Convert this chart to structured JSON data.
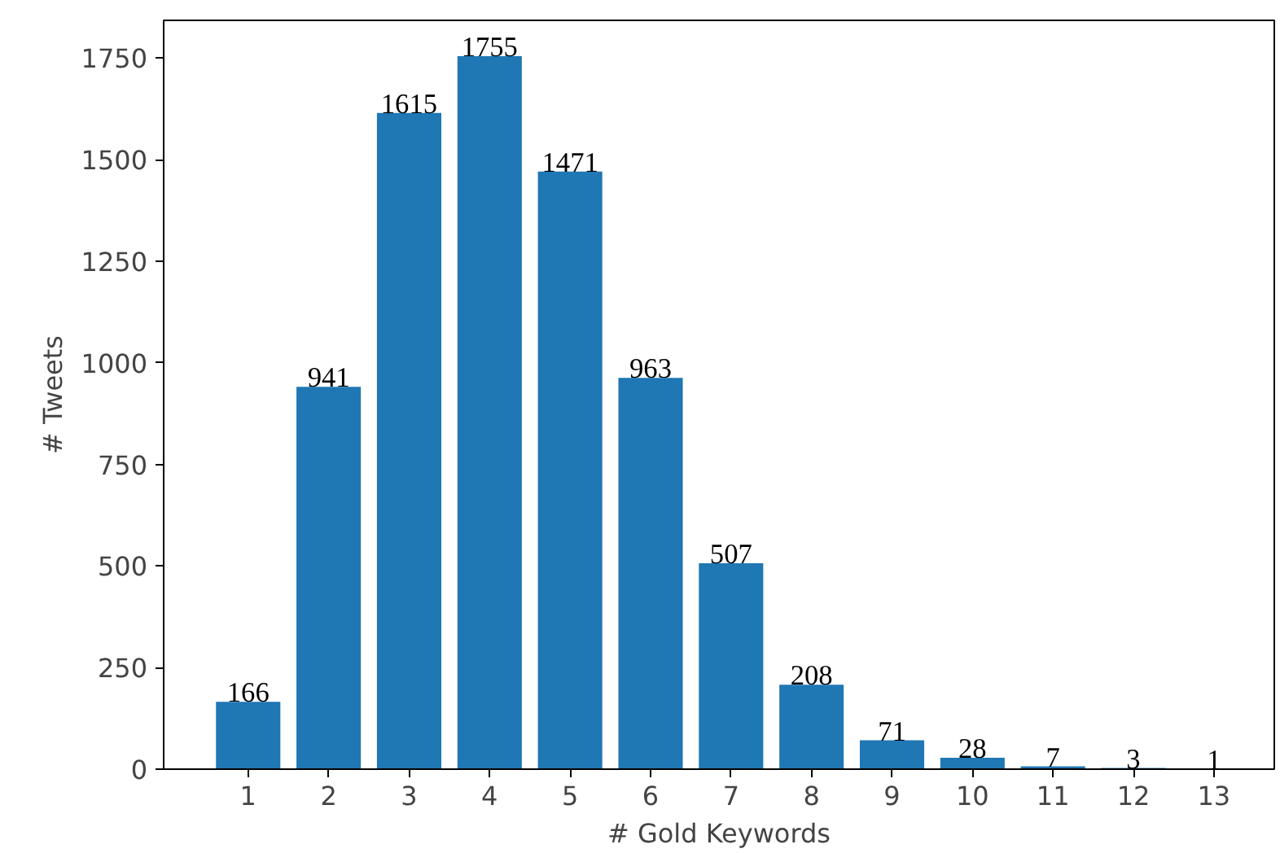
{
  "chart_data": {
    "type": "bar",
    "xlabel": "# Gold Keywords",
    "ylabel": "# Tweets",
    "x": [
      1,
      2,
      3,
      4,
      5,
      6,
      7,
      8,
      9,
      10,
      11,
      12,
      13
    ],
    "values": [
      166,
      941,
      1615,
      1755,
      1471,
      963,
      507,
      208,
      71,
      28,
      7,
      3,
      1
    ],
    "color": "#1f77b4",
    "xlim": [
      -0.05,
      13.75
    ],
    "ylim": [
      0,
      1843
    ],
    "xticks": [
      1,
      2,
      3,
      4,
      5,
      6,
      7,
      8,
      9,
      10,
      11,
      12,
      13
    ],
    "yticks": [
      0,
      250,
      500,
      750,
      1000,
      1250,
      1500,
      1750
    ],
    "data_labels": true,
    "grid": false
  }
}
